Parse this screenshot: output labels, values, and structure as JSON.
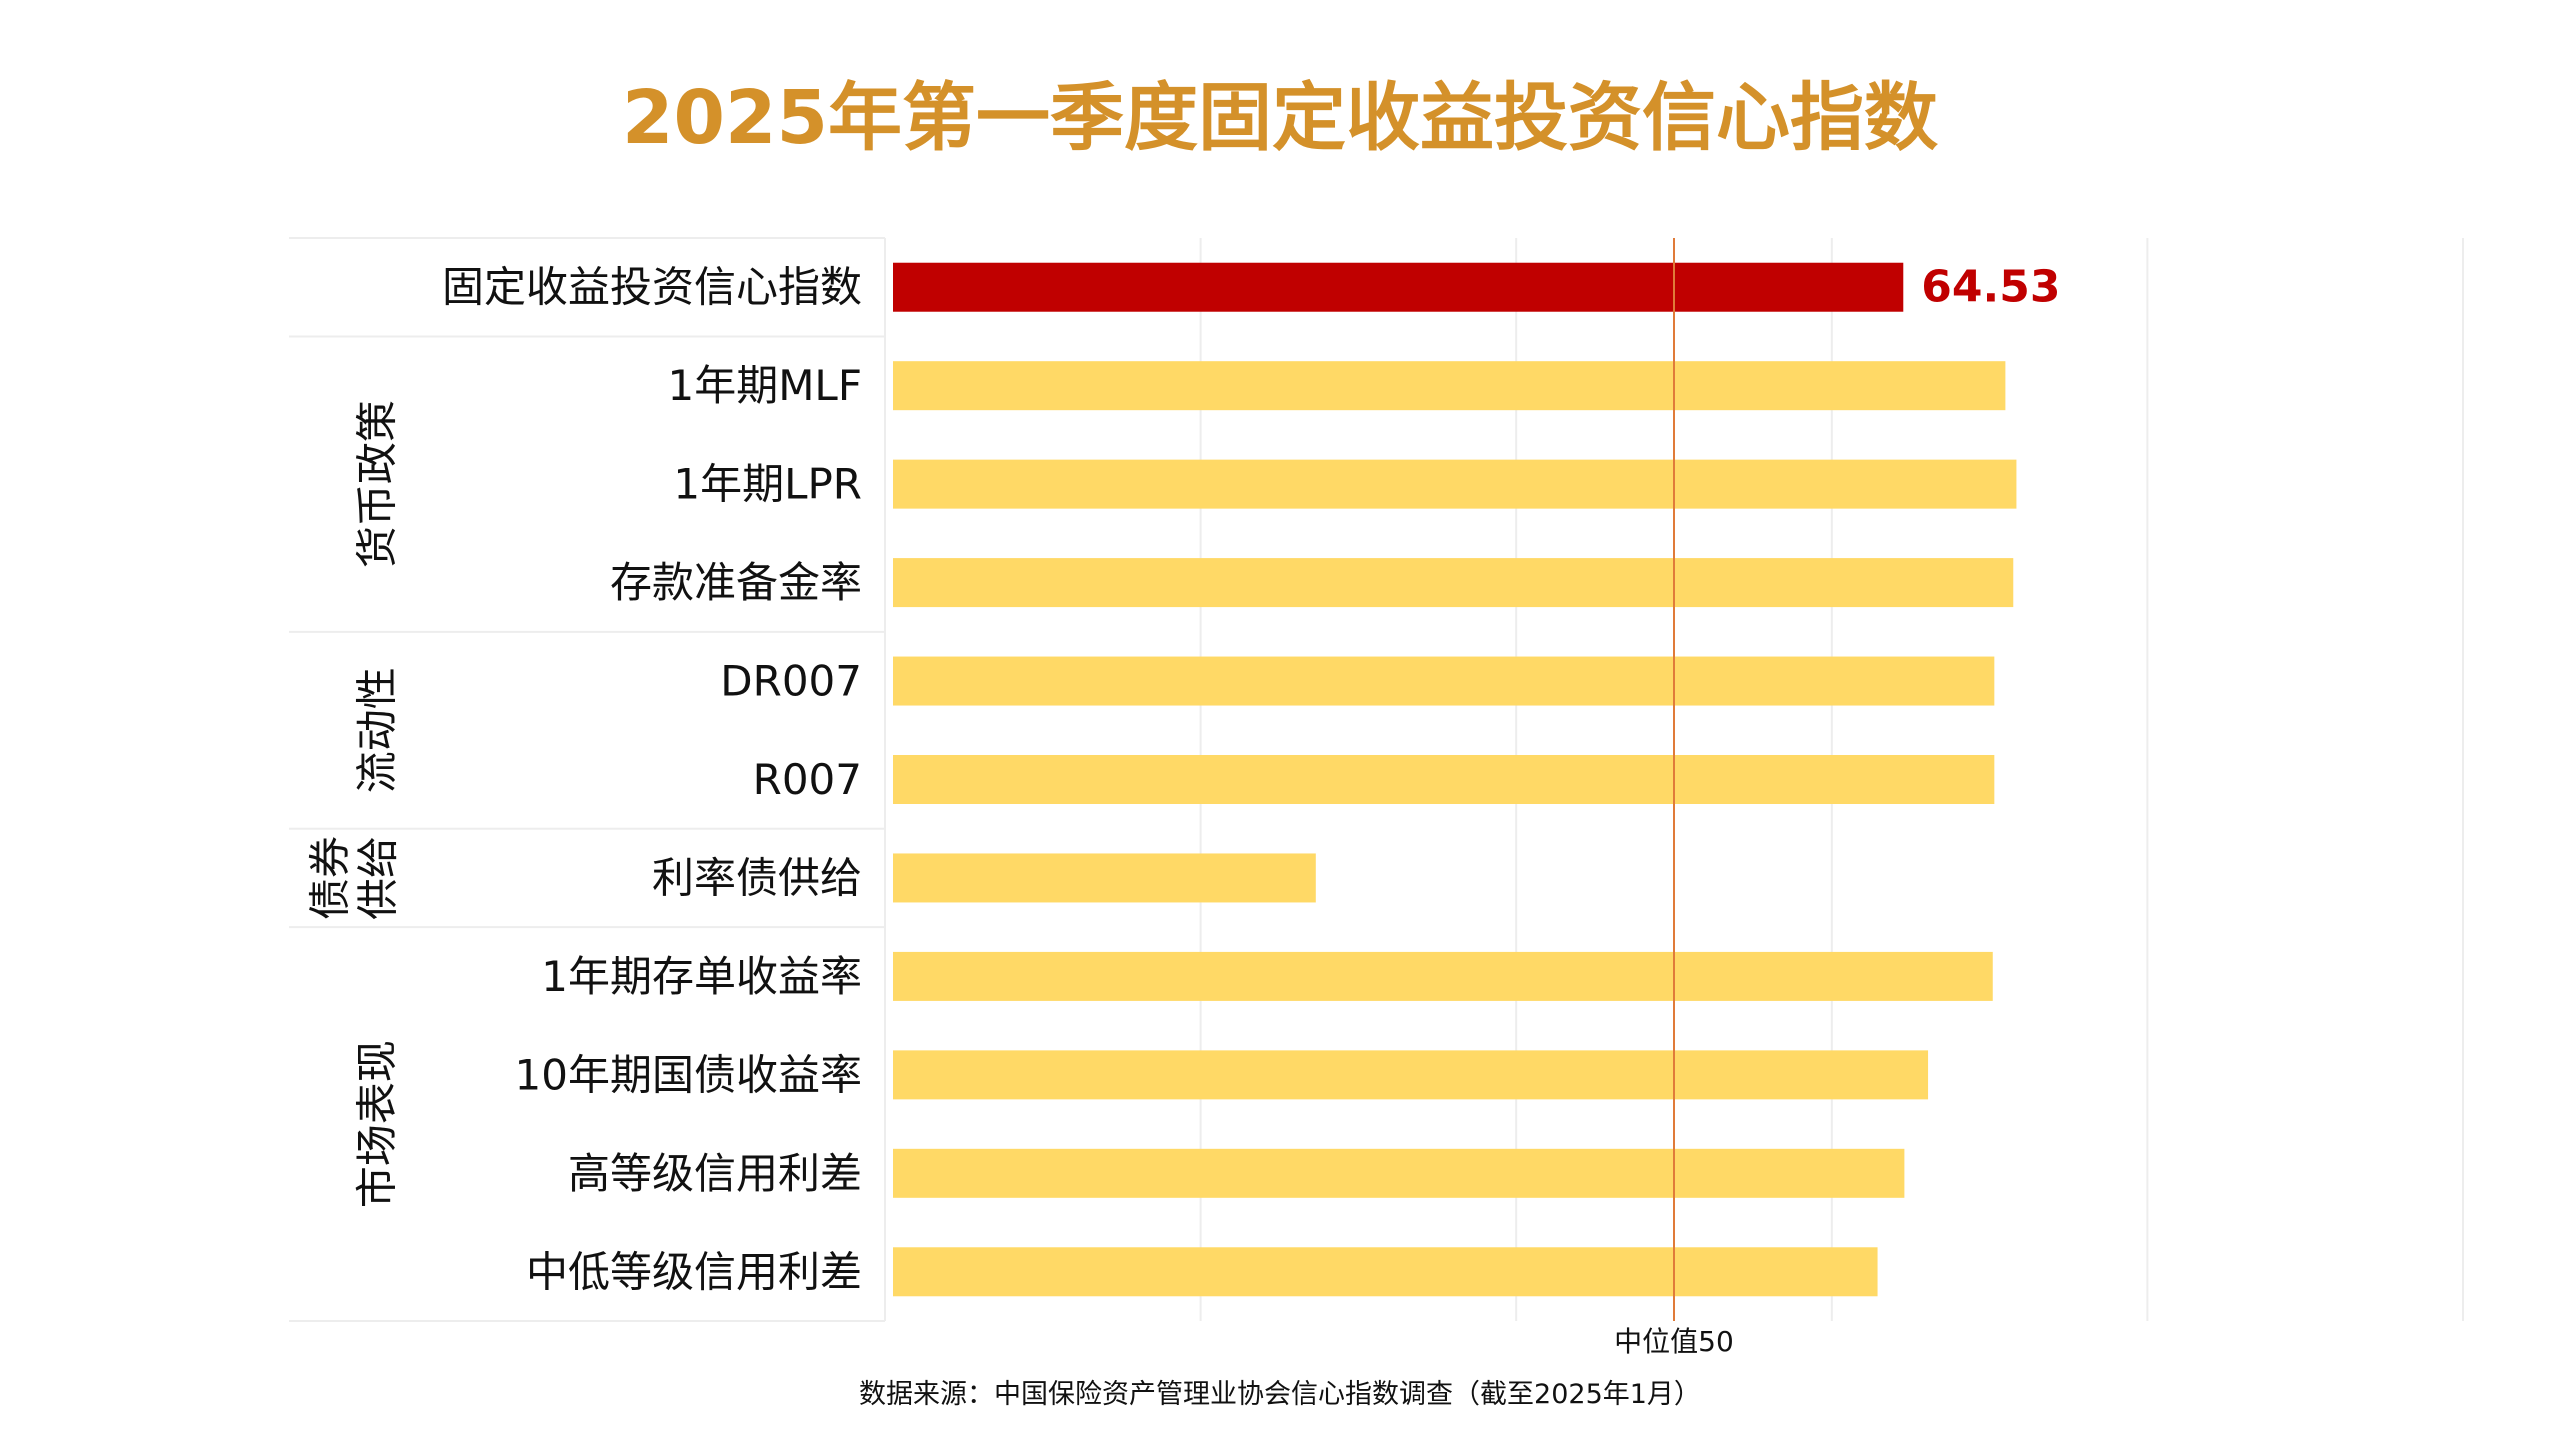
{
  "chart_data": {
    "type": "bar",
    "orientation": "horizontal",
    "title": "2025年第一季度固定收益投资信心指数",
    "categories": [
      "固定收益投资信心指数",
      "1年期MLF",
      "1年期LPR",
      "存款准备金率",
      "DR007",
      "R007",
      "利率债供给",
      "1年期存单收益率",
      "10年期国债收益率",
      "高等级信用利差",
      "中低等级信用利差"
    ],
    "values": [
      64.53,
      71.0,
      71.7,
      71.5,
      70.3,
      70.3,
      27.3,
      70.2,
      66.1,
      64.6,
      62.9
    ],
    "groups": [
      {
        "label": "",
        "rows": [
          0
        ]
      },
      {
        "label": "货币政策",
        "rows": [
          1,
          2,
          3
        ]
      },
      {
        "label": "流动性",
        "rows": [
          4,
          5
        ]
      },
      {
        "label_lines": [
          "债券",
          "供给"
        ],
        "rows": [
          6
        ]
      },
      {
        "label": "市场表现",
        "rows": [
          7,
          8,
          9,
          10
        ]
      }
    ],
    "data_labels": {
      "0": "64.53"
    },
    "xlim": [
      0,
      100
    ],
    "grid": true,
    "reference_line": {
      "value": 50,
      "label": "中位值50",
      "color": "#E07B39"
    },
    "colors": {
      "highlight": "#C00000",
      "bar": "#FFD966",
      "title": "#D4912A",
      "grid": "#EDEDED"
    },
    "source": "数据来源：中国保险资产管理业协会信心指数调查（截至2025年1月）"
  }
}
